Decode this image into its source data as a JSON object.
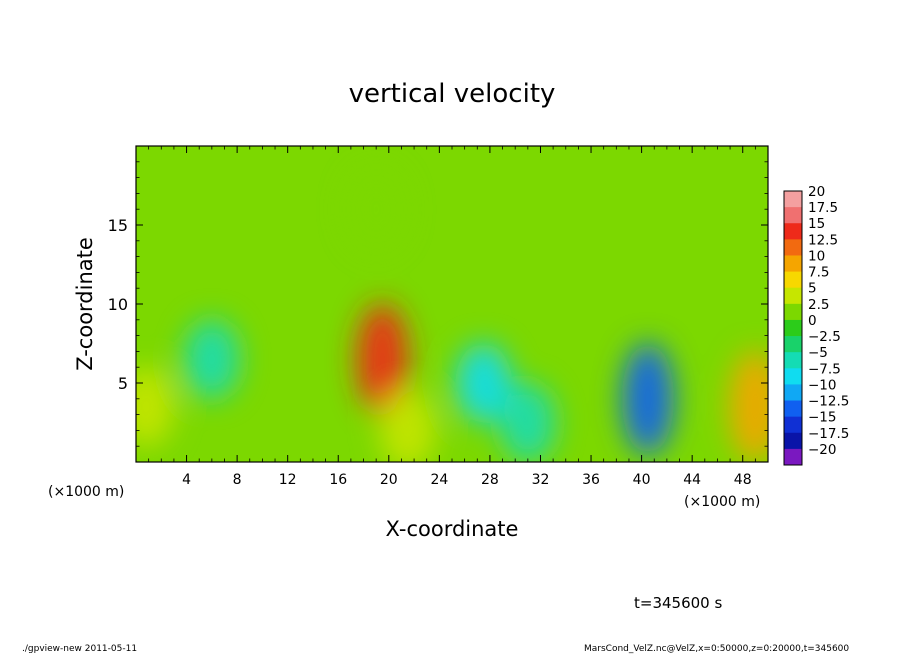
{
  "chart_data": {
    "type": "heatmap",
    "title": "vertical velocity",
    "xlabel": "X-coordinate",
    "ylabel": "Z-coordinate",
    "x_unit_left": "(×1000 m)",
    "x_unit_right": "(×1000 m)",
    "xlim": [
      0,
      50
    ],
    "ylim": [
      0,
      20
    ],
    "xticks": [
      "4",
      "8",
      "12",
      "16",
      "20",
      "24",
      "28",
      "32",
      "36",
      "40",
      "44",
      "48"
    ],
    "xtick_values": [
      4,
      8,
      12,
      16,
      20,
      24,
      28,
      32,
      36,
      40,
      44,
      48
    ],
    "yticks": [
      "5",
      "10",
      "15"
    ],
    "ytick_values": [
      5,
      10,
      15
    ],
    "colorbar": {
      "labels": [
        "20",
        "17.5",
        "15",
        "12.5",
        "10",
        "7.5",
        "5",
        "2.5",
        "0",
        "−2.5",
        "−5",
        "−7.5",
        "−10",
        "−12.5",
        "−15",
        "−17.5",
        "−20"
      ],
      "levels": [
        20,
        17.5,
        15,
        12.5,
        10,
        7.5,
        5,
        2.5,
        0,
        -2.5,
        -5,
        -7.5,
        -10,
        -12.5,
        -15,
        -17.5,
        -20
      ],
      "colors": [
        "#f4a0a0",
        "#f07070",
        "#ee2a1a",
        "#f26a10",
        "#f5a500",
        "#f7d800",
        "#c6e600",
        "#7cd800",
        "#2ccc1a",
        "#19d26a",
        "#14dcb4",
        "#10dcf0",
        "#10a8f4",
        "#1060f0",
        "#1030d4",
        "#0a14a8",
        "#7a18c0"
      ]
    },
    "features": [
      {
        "x": 19.5,
        "z": 6.5,
        "value": 14
      },
      {
        "x": 21.5,
        "z": 2.0,
        "value": 6
      },
      {
        "x": 40.5,
        "z": 4.0,
        "value": -13
      },
      {
        "x": 49.0,
        "z": 3.5,
        "value": 11
      },
      {
        "x": 0.8,
        "z": 3.5,
        "value": 6
      },
      {
        "x": 6.0,
        "z": 6.5,
        "value": -5
      },
      {
        "x": 27.5,
        "z": 5.0,
        "value": -7
      },
      {
        "x": 31.0,
        "z": 2.5,
        "value": -6
      },
      {
        "x": 19.0,
        "z": 16.0,
        "value": 3
      }
    ],
    "time_label": "t=345600 s"
  },
  "footer": {
    "left": "./gpview-new   2011-05-11",
    "right": "MarsCond_VelZ.nc@VelZ,x=0:50000,z=0:20000,t=345600"
  }
}
